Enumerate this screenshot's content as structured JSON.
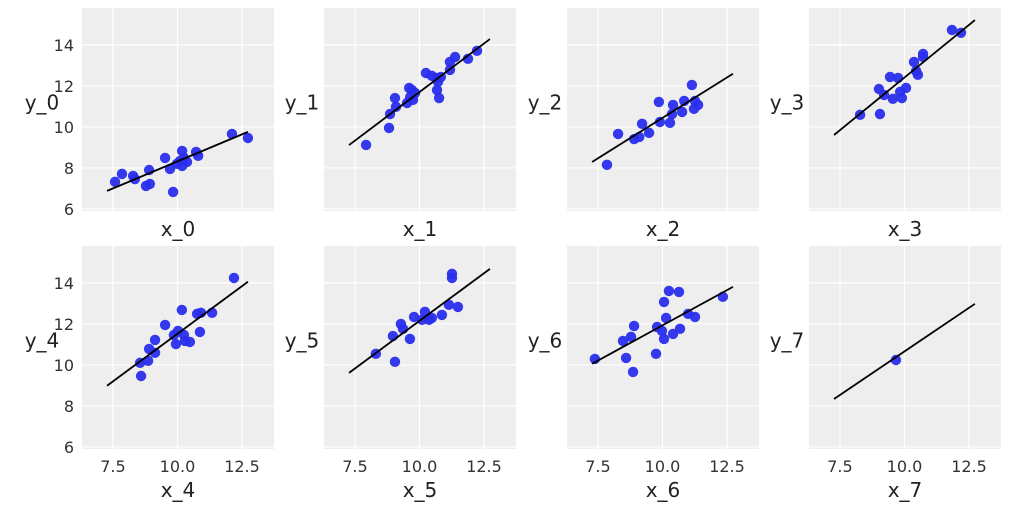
{
  "chart_data": [
    {
      "type": "scatter",
      "xlabel": "x_0",
      "ylabel": "y_0",
      "line": {
        "slope": 0.527,
        "intercept": 3.05,
        "x": [
          7.27,
          12.73
        ]
      },
      "points": [
        [
          7.58,
          7.32
        ],
        [
          7.85,
          7.71
        ],
        [
          8.28,
          7.61
        ],
        [
          8.35,
          7.46
        ],
        [
          8.9,
          7.9
        ],
        [
          8.78,
          7.12
        ],
        [
          8.93,
          7.22
        ],
        [
          9.52,
          8.49
        ],
        [
          9.71,
          7.95
        ],
        [
          9.83,
          6.83
        ],
        [
          9.98,
          8.2
        ],
        [
          10.1,
          8.34
        ],
        [
          10.18,
          8.83
        ],
        [
          10.18,
          8.1
        ],
        [
          10.25,
          8.49
        ],
        [
          10.37,
          8.29
        ],
        [
          10.72,
          8.78
        ],
        [
          10.8,
          8.59
        ],
        [
          12.11,
          9.66
        ],
        [
          12.73,
          9.46
        ]
      ]
    },
    {
      "type": "scatter",
      "xlabel": "x_1",
      "ylabel": "y_1",
      "line": {
        "slope": 0.947,
        "intercept": 2.23,
        "x": [
          7.27,
          12.73
        ]
      },
      "points": [
        [
          7.93,
          9.12
        ],
        [
          8.82,
          9.95
        ],
        [
          8.86,
          10.63
        ],
        [
          9.05,
          11.41
        ],
        [
          9.09,
          10.98
        ],
        [
          9.52,
          11.17
        ],
        [
          9.6,
          11.9
        ],
        [
          9.64,
          11.46
        ],
        [
          9.71,
          11.8
        ],
        [
          9.75,
          11.32
        ],
        [
          9.83,
          11.66
        ],
        [
          10.25,
          12.63
        ],
        [
          10.48,
          12.49
        ],
        [
          10.64,
          12.39
        ],
        [
          10.68,
          11.8
        ],
        [
          10.72,
          12.2
        ],
        [
          10.76,
          11.41
        ],
        [
          10.83,
          12.44
        ],
        [
          11.18,
          12.78
        ],
        [
          11.18,
          13.17
        ],
        [
          11.38,
          13.41
        ],
        [
          11.88,
          13.32
        ],
        [
          12.23,
          13.71
        ]
      ]
    },
    {
      "type": "scatter",
      "xlabel": "x_2",
      "ylabel": "y_2",
      "line": {
        "slope": 0.788,
        "intercept": 2.56,
        "x": [
          7.27,
          12.73
        ]
      },
      "points": [
        [
          7.85,
          8.15
        ],
        [
          8.28,
          9.66
        ],
        [
          8.9,
          9.41
        ],
        [
          9.1,
          9.51
        ],
        [
          9.21,
          10.15
        ],
        [
          9.48,
          9.71
        ],
        [
          9.86,
          11.22
        ],
        [
          9.9,
          10.24
        ],
        [
          10.29,
          10.2
        ],
        [
          10.41,
          11.07
        ],
        [
          10.37,
          10.63
        ],
        [
          10.76,
          10.73
        ],
        [
          10.84,
          11.27
        ],
        [
          11.14,
          12.05
        ],
        [
          11.22,
          10.88
        ],
        [
          11.38,
          11.07
        ],
        [
          11.26,
          11.27
        ]
      ]
    },
    {
      "type": "scatter",
      "xlabel": "x_3",
      "ylabel": "y_3",
      "line": {
        "slope": 1.027,
        "intercept": 2.14,
        "x": [
          7.27,
          12.73
        ]
      },
      "points": [
        [
          8.28,
          10.59
        ],
        [
          9.05,
          10.63
        ],
        [
          9.01,
          11.85
        ],
        [
          9.21,
          11.56
        ],
        [
          9.44,
          12.44
        ],
        [
          9.75,
          12.39
        ],
        [
          9.55,
          11.37
        ],
        [
          9.83,
          11.71
        ],
        [
          9.9,
          11.41
        ],
        [
          10.06,
          11.9
        ],
        [
          10.37,
          13.17
        ],
        [
          10.45,
          12.73
        ],
        [
          10.52,
          12.54
        ],
        [
          10.72,
          13.56
        ],
        [
          10.72,
          13.41
        ],
        [
          11.84,
          14.73
        ],
        [
          12.19,
          14.59
        ]
      ]
    },
    {
      "type": "scatter",
      "xlabel": "x_4",
      "ylabel": "y_4",
      "line": {
        "slope": 0.929,
        "intercept": 2.23,
        "x": [
          7.27,
          12.73
        ]
      },
      "points": [
        [
          12.19,
          14.24
        ],
        [
          10.17,
          12.68
        ],
        [
          10.76,
          12.49
        ],
        [
          10.91,
          12.54
        ],
        [
          11.34,
          12.54
        ],
        [
          9.52,
          11.95
        ],
        [
          9.13,
          11.22
        ],
        [
          10.02,
          11.66
        ],
        [
          9.86,
          11.46
        ],
        [
          10.25,
          11.46
        ],
        [
          10.29,
          11.17
        ],
        [
          10.48,
          11.12
        ],
        [
          10.87,
          11.61
        ],
        [
          9.94,
          11.02
        ],
        [
          8.9,
          10.78
        ],
        [
          9.13,
          10.59
        ],
        [
          8.55,
          10.1
        ],
        [
          8.86,
          10.2
        ],
        [
          8.59,
          9.46
        ]
      ]
    },
    {
      "type": "scatter",
      "xlabel": "x_5",
      "ylabel": "y_5",
      "line": {
        "slope": 0.929,
        "intercept": 2.86,
        "x": [
          7.27,
          12.73
        ]
      },
      "points": [
        [
          11.26,
          14.44
        ],
        [
          11.26,
          14.24
        ],
        [
          11.14,
          12.93
        ],
        [
          11.49,
          12.83
        ],
        [
          10.87,
          12.44
        ],
        [
          10.21,
          12.59
        ],
        [
          10.37,
          12.2
        ],
        [
          10.1,
          12.2
        ],
        [
          9.79,
          12.34
        ],
        [
          10.48,
          12.29
        ],
        [
          9.28,
          12.0
        ],
        [
          9.36,
          11.76
        ],
        [
          8.97,
          11.41
        ],
        [
          9.63,
          11.27
        ],
        [
          8.31,
          10.54
        ],
        [
          9.05,
          10.15
        ]
      ]
    },
    {
      "type": "scatter",
      "xlabel": "x_6",
      "ylabel": "y_6",
      "line": {
        "slope": 0.687,
        "intercept": 5.06,
        "x": [
          7.27,
          12.73
        ]
      },
      "points": [
        [
          7.38,
          10.29
        ],
        [
          8.59,
          10.34
        ],
        [
          8.86,
          9.66
        ],
        [
          8.47,
          11.17
        ],
        [
          8.78,
          11.37
        ],
        [
          8.9,
          11.9
        ],
        [
          9.75,
          10.54
        ],
        [
          9.79,
          11.85
        ],
        [
          10.06,
          11.27
        ],
        [
          9.98,
          11.66
        ],
        [
          10.14,
          12.29
        ],
        [
          10.06,
          13.07
        ],
        [
          10.25,
          13.61
        ],
        [
          10.64,
          13.56
        ],
        [
          10.41,
          11.51
        ],
        [
          10.68,
          11.76
        ],
        [
          10.99,
          12.49
        ],
        [
          11.26,
          12.34
        ],
        [
          12.34,
          13.32
        ]
      ]
    },
    {
      "type": "scatter",
      "xlabel": "x_7",
      "ylabel": "y_7",
      "line": {
        "slope": 0.85,
        "intercept": 2.16,
        "x": [
          7.27,
          12.73
        ]
      },
      "points": [
        [
          9.67,
          10.24
        ]
      ]
    }
  ],
  "axes": {
    "xlim": [
      6.3,
      13.74
    ],
    "ylim": [
      5.9,
      15.8
    ],
    "xticks": [
      7.5,
      10.0,
      12.5
    ],
    "xtick_labels": [
      "7.5",
      "10.0",
      "12.5"
    ],
    "yticks": [
      6,
      8,
      10,
      12,
      14
    ],
    "ytick_labels": [
      "6",
      "8",
      "10",
      "12",
      "14"
    ],
    "grid": true,
    "sharex": true,
    "sharey": true,
    "layout": "2x4"
  },
  "colors": {
    "point": "#2a2eec",
    "line": "#000000",
    "panel_bg": "#eeeeee",
    "grid": "#ffffff"
  }
}
